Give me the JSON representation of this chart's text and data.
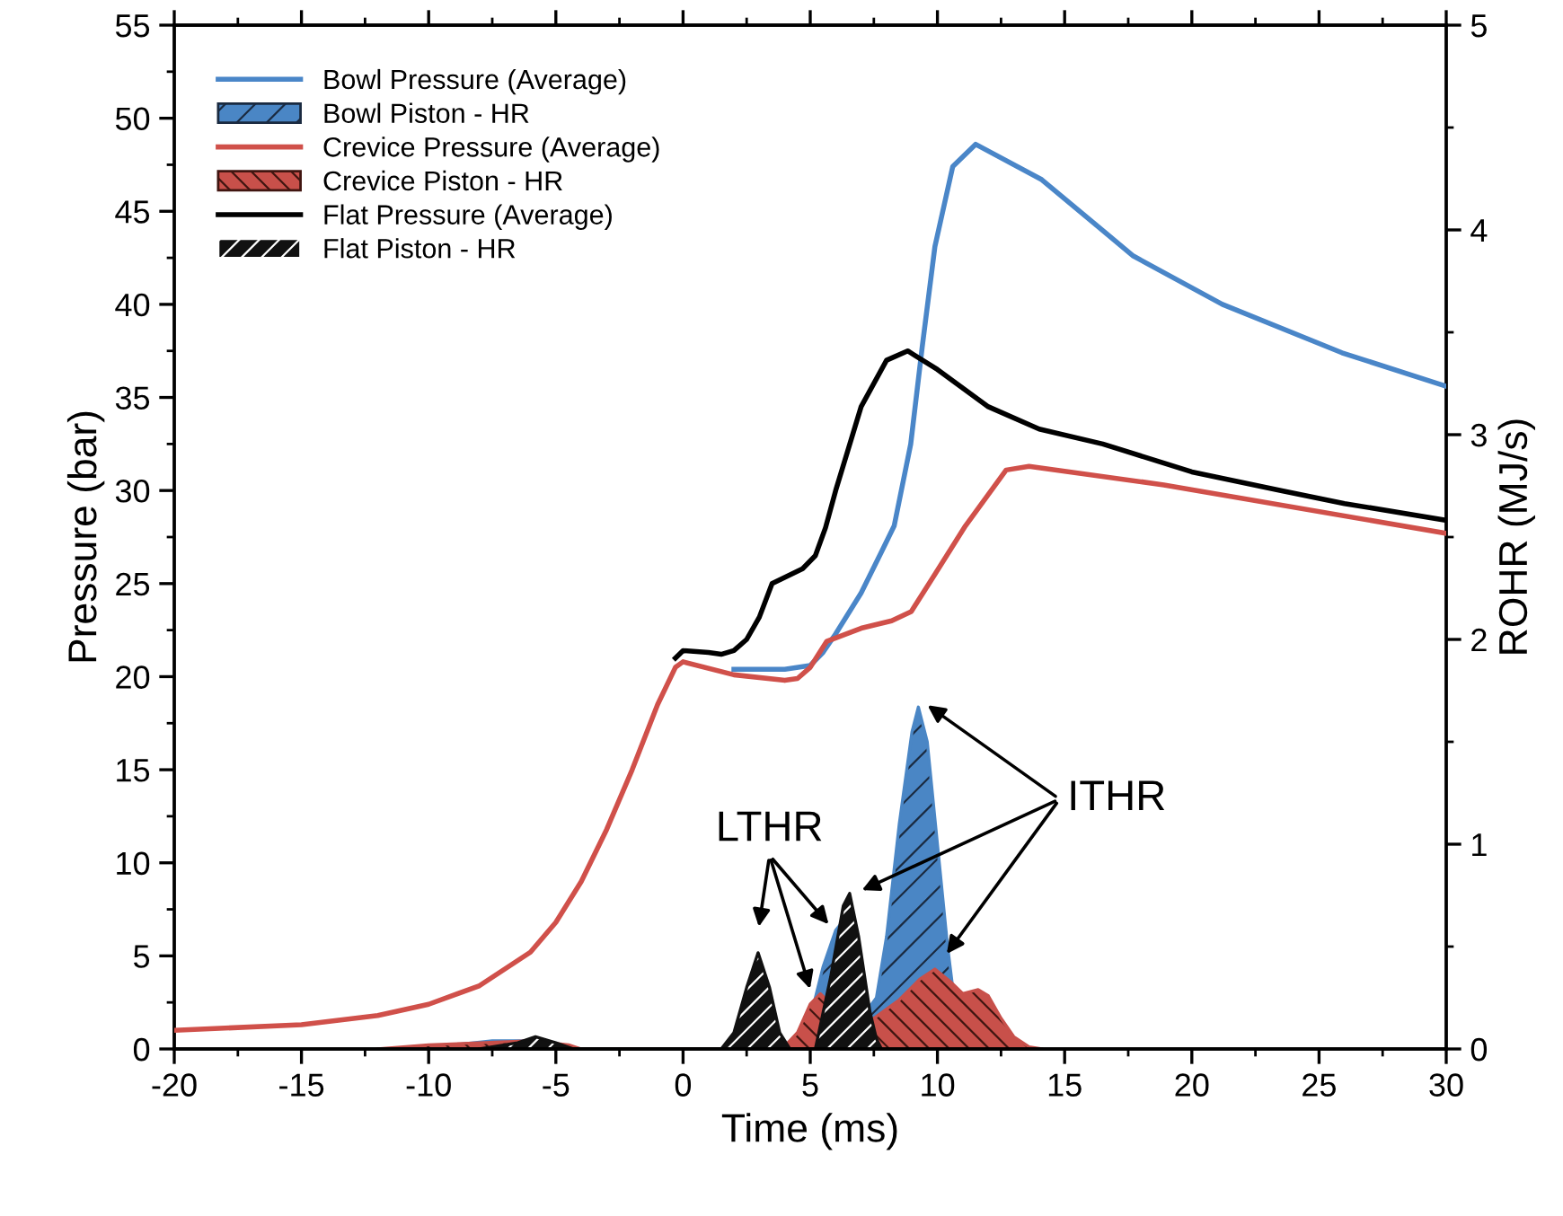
{
  "chart_data": {
    "type": "line",
    "xlabel": "Time (ms)",
    "ylabel": "Pressure (bar)",
    "y2label": "ROHR (MJ/s)",
    "xlim": [
      -20,
      30
    ],
    "xticks": [
      -20,
      -15,
      -10,
      -5,
      0,
      5,
      10,
      15,
      20,
      25,
      30
    ],
    "ylim": [
      0,
      55
    ],
    "yticks": [
      0,
      5,
      10,
      15,
      20,
      25,
      30,
      35,
      40,
      45,
      50,
      55
    ],
    "y2lim": [
      0,
      5
    ],
    "y2ticks": [
      0,
      1,
      2,
      3,
      4,
      5
    ],
    "grid": false,
    "legend": "top left",
    "annotations": [
      {
        "text": "LTHR",
        "x": 2.95,
        "y": 5.2
      },
      {
        "text": "ITHR",
        "x": 9.25,
        "y": 18.4
      }
    ],
    "series": [
      {
        "name": "Bowl Pressure (Average)",
        "color": "#4a86c8",
        "x": [
          2,
          4,
          5,
          5.5,
          6,
          7,
          7.8,
          8.3,
          8.95,
          9.4,
          9.9,
          10.6,
          11.5,
          14.1,
          17.7,
          21.2,
          25.9,
          30
        ],
        "values": [
          20.4,
          20.4,
          20.6,
          21.3,
          22.3,
          24.5,
          26.7,
          28.1,
          32.5,
          37.7,
          43.1,
          47.4,
          48.6,
          46.7,
          42.6,
          40.0,
          37.4,
          35.6
        ]
      },
      {
        "name": "Bowl Piston - HR",
        "type": "area",
        "axis": "y2",
        "color": "#4a86c5",
        "x": [
          -11.5,
          -9,
          -7.5,
          -6,
          -4.5,
          -4,
          3.9,
          4.5,
          5.0,
          5.5,
          6.0,
          6.2,
          6.6,
          7.0,
          7.3,
          7.6,
          8.0,
          8.5,
          9.0,
          9.25,
          9.6,
          10.0,
          10.4,
          10.8,
          11.1
        ],
        "values": [
          0,
          0.02,
          0.04,
          0.04,
          0.01,
          0,
          0,
          0.02,
          0.15,
          0.4,
          0.58,
          0.61,
          0.5,
          0.3,
          0.2,
          0.25,
          0.55,
          1.1,
          1.55,
          1.67,
          1.5,
          1.0,
          0.5,
          0.1,
          0
        ]
      },
      {
        "name": "Crevice Pressure (Average)",
        "color": "#d0504a",
        "x": [
          -20,
          -15,
          -12,
          -10,
          -8,
          -6,
          -5,
          -4,
          -3,
          -2,
          -1,
          -0.3,
          0,
          2,
          4,
          4.5,
          5.0,
          5.65,
          7,
          8.2,
          8.97,
          9.9,
          11.1,
          12.7,
          13.6,
          18.9,
          30
        ],
        "values": [
          1.0,
          1.3,
          1.8,
          2.4,
          3.4,
          5.2,
          6.8,
          9.0,
          11.8,
          15.0,
          18.5,
          20.5,
          20.8,
          20.1,
          19.8,
          19.9,
          20.5,
          21.9,
          22.6,
          23.0,
          23.5,
          25.5,
          28.1,
          31.1,
          31.3,
          30.3,
          27.7
        ]
      },
      {
        "name": "Crevice Piston - HR",
        "type": "area",
        "axis": "y2",
        "color": "#c8504a",
        "x": [
          -12,
          -10,
          -8,
          -6,
          -4.5,
          -4,
          3.9,
          4.5,
          5.0,
          5.4,
          5.8,
          6.3,
          6.8,
          7.5,
          8.5,
          9.3,
          9.9,
          10.5,
          11.0,
          11.6,
          12.0,
          12.5,
          13.0,
          13.6,
          14.1
        ],
        "values": [
          0,
          0.02,
          0.03,
          0.04,
          0.02,
          0,
          0,
          0.08,
          0.22,
          0.27,
          0.22,
          0.1,
          0.1,
          0.15,
          0.24,
          0.34,
          0.39,
          0.33,
          0.27,
          0.29,
          0.26,
          0.15,
          0.06,
          0.01,
          0
        ]
      },
      {
        "name": "Flat Pressure (Average)",
        "color": "#000000",
        "x": [
          -0.3,
          0,
          1,
          1.5,
          2,
          2.5,
          3,
          3.5,
          4.7,
          5.2,
          5.6,
          6,
          7,
          8,
          8.83,
          10,
          12,
          14,
          16.5,
          20,
          23.5,
          26,
          30
        ],
        "values": [
          21.0,
          21.4,
          21.3,
          21.2,
          21.4,
          22.0,
          23.2,
          25.0,
          25.8,
          26.5,
          28.0,
          30.0,
          34.5,
          37.0,
          37.5,
          36.5,
          34.5,
          33.3,
          32.5,
          31.0,
          30.0,
          29.3,
          28.4
        ]
      },
      {
        "name": "Flat Piston - HR",
        "type": "area",
        "axis": "y2",
        "color": "#111111",
        "x": [
          -8,
          -6.5,
          -5.8,
          -5,
          -4.3,
          1.5,
          2.0,
          2.5,
          2.95,
          3.4,
          3.8,
          4.2,
          5.2,
          5.8,
          6.3,
          6.55,
          6.9,
          7.35,
          7.6,
          7.8
        ],
        "values": [
          0,
          0.03,
          0.06,
          0.03,
          0,
          0,
          0.08,
          0.3,
          0.47,
          0.3,
          0.08,
          0,
          0,
          0.35,
          0.7,
          0.76,
          0.55,
          0.18,
          0.05,
          0
        ]
      }
    ]
  }
}
